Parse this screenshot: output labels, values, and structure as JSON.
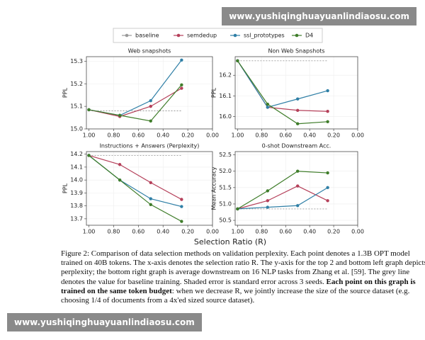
{
  "watermark_top": "www.yushiqinghuayuanlindiaosu.com",
  "watermark_bottom": "www.yushiqinghuayuanlindiaosu.com",
  "xlabel": "Selection Ratio (R)",
  "caption": {
    "part1": "Figure 2: Comparison of data selection methods on validation perplexity. Each point denotes a 1.3B OPT model trained on 40B tokens. The x-axis denotes the selection ratio R. The y-axis for the top 2 and bottom left graph depicts perplexity; the bottom right graph is average downstream on 16 NLP tasks from Zhang et al. [59]. The grey line denotes the value for baseline training. Shaded error is standard error across 3 seeds.",
    "bold": "Each point on this graph is trained on the same token budget",
    "part2": ": when we decrease R, we jointly increase the size of the source dataset (e.g. choosing 1/4 of documents from a 4x'ed sized source dataset)."
  },
  "chart_data": [
    {
      "type": "line",
      "title": "Web snapshots",
      "ylabel": "PPL",
      "x": [
        1.0,
        0.75,
        0.5,
        0.25
      ],
      "xlim": [
        1.02,
        0.0
      ],
      "xticks": [
        {
          "value": 1,
          "label": "1.00"
        },
        {
          "value": 0.8,
          "label": "0.80"
        },
        {
          "value": 0.6,
          "label": "0.60"
        },
        {
          "value": 0.4,
          "label": "0.40"
        },
        {
          "value": 0.2,
          "label": "0.20"
        },
        {
          "value": 0,
          "label": "0.00"
        }
      ],
      "ylim": [
        15.0,
        15.32
      ],
      "yticks": [
        {
          "value": 15,
          "label": "15.0"
        },
        15.1,
        15.2,
        15.3
      ],
      "grid": true,
      "series": [
        {
          "name": "baseline",
          "color": "#9a9a9a",
          "values": [
            15.08,
            15.08,
            15.08,
            15.08
          ]
        },
        {
          "name": "semdedup",
          "color": "#b5405a",
          "values": [
            15.085,
            15.055,
            15.1,
            15.18
          ]
        },
        {
          "name": "ssl_prototypes",
          "color": "#2f7fa6",
          "values": [
            15.085,
            15.06,
            15.125,
            15.305
          ]
        },
        {
          "name": "D4",
          "color": "#3f7d2a",
          "values": [
            15.085,
            15.06,
            15.035,
            15.195
          ]
        }
      ]
    },
    {
      "type": "line",
      "title": "Non Web Snapshots",
      "ylabel": "PPL",
      "x": [
        1.0,
        0.75,
        0.5,
        0.25
      ],
      "xlim": [
        1.02,
        0.0
      ],
      "xticks": [
        {
          "value": 1,
          "label": "1.00"
        },
        {
          "value": 0.8,
          "label": "0.80"
        },
        {
          "value": 0.6,
          "label": "0.60"
        },
        {
          "value": 0.4,
          "label": "0.40"
        },
        {
          "value": 0.2,
          "label": "0.20"
        },
        {
          "value": 0,
          "label": "0.00"
        }
      ],
      "ylim": [
        15.94,
        16.29
      ],
      "yticks": [
        {
          "value": 16,
          "label": "16.0"
        },
        16.1,
        16.2
      ],
      "grid": true,
      "series": [
        {
          "name": "baseline",
          "color": "#9a9a9a",
          "values": [
            16.27,
            16.27,
            16.27,
            16.27
          ]
        },
        {
          "name": "semdedup",
          "color": "#b5405a",
          "values": [
            16.27,
            16.045,
            16.03,
            16.025
          ]
        },
        {
          "name": "ssl_prototypes",
          "color": "#2f7fa6",
          "values": [
            16.27,
            16.045,
            16.085,
            16.125
          ]
        },
        {
          "name": "D4",
          "color": "#3f7d2a",
          "values": [
            16.27,
            16.06,
            15.965,
            15.975
          ]
        }
      ]
    },
    {
      "type": "line",
      "title": "Instructions + Answers (Perplexity)",
      "ylabel": "PPL",
      "x": [
        1.0,
        0.75,
        0.5,
        0.25
      ],
      "xlim": [
        1.02,
        0.0
      ],
      "xticks": [
        {
          "value": 1,
          "label": "1.00"
        },
        {
          "value": 0.8,
          "label": "0.80"
        },
        {
          "value": 0.6,
          "label": "0.60"
        },
        {
          "value": 0.4,
          "label": "0.40"
        },
        {
          "value": 0.2,
          "label": "0.20"
        },
        {
          "value": 0,
          "label": "0.00"
        }
      ],
      "ylim": [
        13.65,
        14.22
      ],
      "yticks": [
        13.7,
        13.8,
        13.9,
        {
          "value": 14,
          "label": "14.0"
        },
        14.1,
        14.2
      ],
      "grid": true,
      "series": [
        {
          "name": "baseline",
          "color": "#9a9a9a",
          "values": [
            14.19,
            14.19,
            14.19,
            14.19
          ]
        },
        {
          "name": "semdedup",
          "color": "#b5405a",
          "values": [
            14.19,
            14.12,
            13.98,
            13.85
          ]
        },
        {
          "name": "ssl_prototypes",
          "color": "#2f7fa6",
          "values": [
            14.19,
            14.0,
            13.855,
            13.795
          ]
        },
        {
          "name": "D4",
          "color": "#3f7d2a",
          "values": [
            14.19,
            14.0,
            13.81,
            13.68
          ]
        }
      ]
    },
    {
      "type": "line",
      "title": "0-shot Downstream Acc.",
      "ylabel": "Mean Accuracy",
      "x": [
        1.0,
        0.75,
        0.5,
        0.25
      ],
      "xlim": [
        1.02,
        0.0
      ],
      "xticks": [
        {
          "value": 1,
          "label": "1.00"
        },
        {
          "value": 0.8,
          "label": "0.80"
        },
        {
          "value": 0.6,
          "label": "0.60"
        },
        {
          "value": 0.4,
          "label": "0.40"
        },
        {
          "value": 0.2,
          "label": "0.20"
        },
        {
          "value": 0,
          "label": "0.00"
        }
      ],
      "ylim": [
        50.35,
        52.6
      ],
      "yticks": [
        50.5,
        {
          "value": 51,
          "label": "51.0"
        },
        51.5,
        {
          "value": 52,
          "label": "52.0"
        },
        52.5
      ],
      "grid": true,
      "series": [
        {
          "name": "baseline",
          "color": "#9a9a9a",
          "values": [
            50.85,
            50.85,
            50.85,
            50.85
          ]
        },
        {
          "name": "semdedup",
          "color": "#b5405a",
          "values": [
            50.85,
            51.1,
            51.55,
            51.1
          ]
        },
        {
          "name": "ssl_prototypes",
          "color": "#2f7fa6",
          "values": [
            50.85,
            50.9,
            50.95,
            51.5
          ]
        },
        {
          "name": "D4",
          "color": "#3f7d2a",
          "values": [
            50.85,
            51.4,
            52.0,
            51.95
          ]
        }
      ]
    }
  ]
}
